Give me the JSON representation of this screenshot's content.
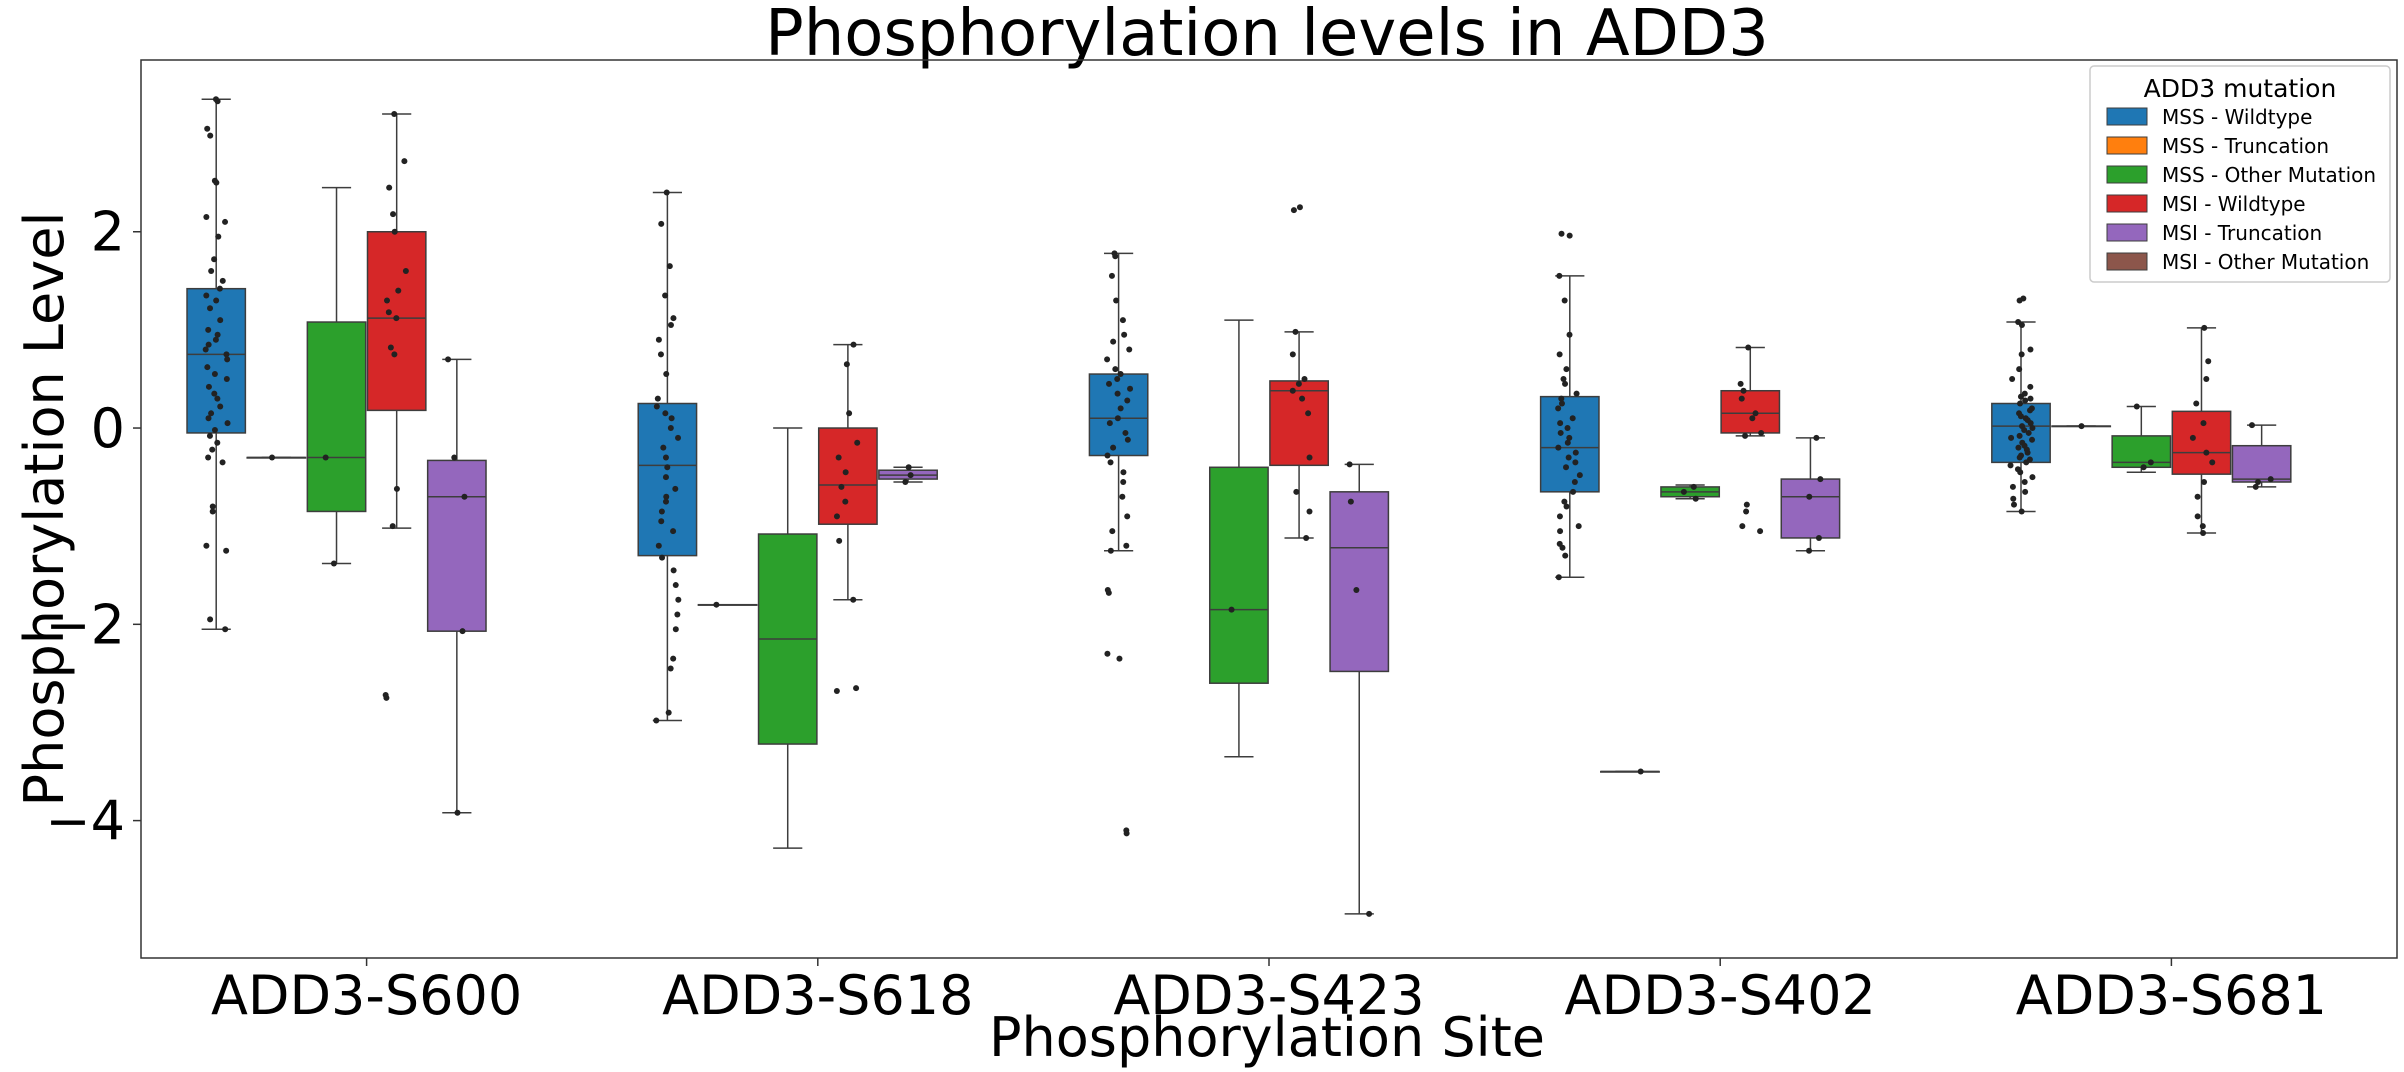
{
  "chart_data": {
    "type": "box",
    "title": "Phosphorylation levels in ADD3",
    "xlabel": "Phosphorylation Site",
    "ylabel": "Phosphorylation Level",
    "ylim": [
      -5.4,
      3.75
    ],
    "yticks": [
      2,
      0,
      -2,
      -4
    ],
    "ytick_labels": [
      "2",
      "0",
      "−2",
      "−4"
    ],
    "categories": [
      "ADD3-S600",
      "ADD3-S618",
      "ADD3-S423",
      "ADD3-S402",
      "ADD3-S681"
    ],
    "legend": {
      "title": "ADD3 mutation",
      "position": "top-right"
    },
    "series": [
      {
        "name": "MSS - Wildtype",
        "color": "#1f77b4",
        "boxes": [
          {
            "whislo": -2.05,
            "q1": -0.05,
            "med": 0.75,
            "q3": 1.42,
            "whishi": 3.35,
            "points": [
              3.35,
              3.33,
              3.05,
              2.98,
              2.52,
              2.5,
              2.15,
              2.1,
              1.95,
              1.72,
              1.6,
              1.5,
              1.42,
              1.35,
              1.3,
              1.22,
              1.1,
              1.0,
              0.95,
              0.9,
              0.85,
              0.8,
              0.75,
              0.7,
              0.62,
              0.55,
              0.5,
              0.42,
              0.35,
              0.3,
              0.22,
              0.15,
              0.1,
              0.05,
              -0.02,
              -0.08,
              -0.15,
              -0.22,
              -0.3,
              -0.35,
              -0.8,
              -0.85,
              -1.2,
              -1.25,
              -1.95,
              -2.05
            ]
          },
          {
            "whislo": -2.98,
            "q1": -1.3,
            "med": -0.38,
            "q3": 0.25,
            "whishi": 2.4,
            "points": [
              2.4,
              2.08,
              1.65,
              1.35,
              1.12,
              1.05,
              0.9,
              0.75,
              0.55,
              0.3,
              0.22,
              0.15,
              0.1,
              0.0,
              -0.1,
              -0.2,
              -0.3,
              -0.4,
              -0.5,
              -0.62,
              -0.7,
              -0.75,
              -0.85,
              -0.95,
              -1.05,
              -1.2,
              -1.32,
              -1.45,
              -1.6,
              -1.75,
              -1.9,
              -2.05,
              -2.35,
              -2.45,
              -2.9,
              -2.98
            ]
          },
          {
            "whislo": -1.25,
            "q1": -0.28,
            "med": 0.1,
            "q3": 0.55,
            "whishi": 1.78,
            "points": [
              1.78,
              1.75,
              1.55,
              1.3,
              1.1,
              0.95,
              0.88,
              0.8,
              0.7,
              0.6,
              0.55,
              0.5,
              0.45,
              0.4,
              0.35,
              0.28,
              0.2,
              0.1,
              0.05,
              -0.05,
              -0.12,
              -0.2,
              -0.28,
              -0.35,
              -0.45,
              -0.55,
              -0.7,
              -0.9,
              -1.05,
              -1.2,
              -1.25,
              -1.65,
              -1.68,
              -2.3,
              -2.35,
              -4.1,
              -4.13
            ]
          },
          {
            "whislo": -1.52,
            "q1": -0.65,
            "med": -0.2,
            "q3": 0.32,
            "whishi": 1.55,
            "points": [
              1.98,
              1.96,
              1.55,
              1.3,
              0.95,
              0.75,
              0.6,
              0.5,
              0.45,
              0.35,
              0.3,
              0.25,
              0.2,
              0.1,
              0.05,
              0.0,
              -0.05,
              -0.1,
              -0.15,
              -0.2,
              -0.25,
              -0.3,
              -0.35,
              -0.4,
              -0.48,
              -0.55,
              -0.65,
              -0.75,
              -0.8,
              -0.9,
              -1.0,
              -1.05,
              -1.18,
              -1.22,
              -1.3,
              -1.52
            ]
          },
          {
            "whislo": -0.85,
            "q1": -0.35,
            "med": 0.02,
            "q3": 0.25,
            "whishi": 1.08,
            "points": [
              1.32,
              1.3,
              1.08,
              1.05,
              0.8,
              0.75,
              0.6,
              0.5,
              0.42,
              0.35,
              0.32,
              0.3,
              0.28,
              0.25,
              0.2,
              0.18,
              0.15,
              0.12,
              0.1,
              0.08,
              0.05,
              0.02,
              0.0,
              -0.02,
              -0.05,
              -0.08,
              -0.1,
              -0.12,
              -0.15,
              -0.18,
              -0.2,
              -0.22,
              -0.25,
              -0.28,
              -0.3,
              -0.32,
              -0.35,
              -0.38,
              -0.42,
              -0.45,
              -0.5,
              -0.55,
              -0.6,
              -0.65,
              -0.72,
              -0.78,
              -0.85
            ]
          }
        ]
      },
      {
        "name": "MSS - Truncation",
        "color": "#ff7f0e",
        "boxes": [
          {
            "whislo": -0.3,
            "q1": -0.3,
            "med": -0.3,
            "q3": -0.3,
            "whishi": -0.3,
            "points": [
              -0.3
            ]
          },
          {
            "whislo": -1.8,
            "q1": -1.8,
            "med": -1.8,
            "q3": -1.8,
            "whishi": -1.8,
            "points": [
              -1.8
            ]
          },
          null,
          {
            "whislo": -3.5,
            "q1": -3.5,
            "med": -3.5,
            "q3": -3.5,
            "whishi": -3.5,
            "points": [
              -3.5
            ]
          },
          {
            "whislo": 0.02,
            "q1": 0.02,
            "med": 0.02,
            "q3": 0.02,
            "whishi": 0.02,
            "points": [
              0.02
            ]
          }
        ]
      },
      {
        "name": "MSS - Other Mutation",
        "color": "#2ca02c",
        "boxes": [
          {
            "whislo": -1.38,
            "q1": -0.85,
            "med": -0.3,
            "q3": 1.08,
            "whishi": 2.45,
            "points": [
              -0.3,
              -1.38
            ]
          },
          {
            "whislo": -4.28,
            "q1": -3.22,
            "med": -2.15,
            "q3": -1.08,
            "whishi": 0.0,
            "points": []
          },
          {
            "whislo": -3.35,
            "q1": -2.6,
            "med": -1.85,
            "q3": -0.4,
            "whishi": 1.1,
            "points": [
              -1.85
            ]
          },
          {
            "whislo": -0.72,
            "q1": -0.7,
            "med": -0.65,
            "q3": -0.6,
            "whishi": -0.58,
            "points": [
              -0.6,
              -0.65,
              -0.72
            ]
          },
          {
            "whislo": -0.45,
            "q1": -0.4,
            "med": -0.35,
            "q3": -0.08,
            "whishi": 0.22,
            "points": [
              0.22,
              -0.35,
              -0.4
            ]
          }
        ]
      },
      {
        "name": "MSI - Wildtype",
        "color": "#d62728",
        "boxes": [
          {
            "whislo": -1.02,
            "q1": 0.18,
            "med": 1.12,
            "q3": 2.0,
            "whishi": 3.2,
            "points": [
              3.2,
              2.72,
              2.45,
              2.18,
              2.0,
              1.6,
              1.4,
              1.3,
              1.18,
              1.12,
              0.82,
              0.75,
              -0.62,
              -1.0,
              -2.72,
              -2.75
            ]
          },
          {
            "whislo": -1.75,
            "q1": -0.98,
            "med": -0.58,
            "q3": 0.0,
            "whishi": 0.85,
            "points": [
              0.85,
              0.65,
              0.15,
              -0.15,
              -0.3,
              -0.45,
              -0.6,
              -0.75,
              -0.9,
              -1.15,
              -1.75,
              -2.65,
              -2.68
            ]
          },
          {
            "whislo": -1.12,
            "q1": -0.38,
            "med": 0.38,
            "q3": 0.48,
            "whishi": 0.98,
            "points": [
              2.25,
              2.22,
              0.98,
              0.75,
              0.5,
              0.45,
              0.38,
              0.3,
              0.15,
              -0.3,
              -0.65,
              -0.85,
              -1.12
            ]
          },
          {
            "whislo": -0.08,
            "q1": -0.05,
            "med": 0.15,
            "q3": 0.38,
            "whishi": 0.82,
            "points": [
              0.82,
              0.45,
              0.38,
              0.3,
              0.15,
              0.1,
              -0.05,
              -0.08,
              -0.78,
              -0.85,
              -1.0,
              -1.05
            ]
          },
          {
            "whislo": -1.07,
            "q1": -0.47,
            "med": -0.25,
            "q3": 0.17,
            "whishi": 1.02,
            "points": [
              1.02,
              0.68,
              0.5,
              0.25,
              0.05,
              -0.1,
              -0.25,
              -0.35,
              -0.55,
              -0.7,
              -0.9,
              -1.0,
              -1.07
            ]
          }
        ]
      },
      {
        "name": "MSI - Truncation",
        "color": "#9467bd",
        "boxes": [
          {
            "whislo": -3.92,
            "q1": -2.07,
            "med": -0.7,
            "q3": -0.33,
            "whishi": 0.7,
            "points": [
              0.7,
              -0.3,
              -0.7,
              -2.07,
              -3.92
            ]
          },
          {
            "whislo": -0.55,
            "q1": -0.52,
            "med": -0.48,
            "q3": -0.43,
            "whishi": -0.4,
            "points": [
              -0.4,
              -0.48,
              -0.55
            ]
          },
          {
            "whislo": -4.95,
            "q1": -2.48,
            "med": -1.22,
            "q3": -0.65,
            "whishi": -0.37,
            "points": [
              -0.37,
              -0.75,
              -1.65,
              -4.95
            ]
          },
          {
            "whislo": -1.25,
            "q1": -1.12,
            "med": -0.7,
            "q3": -0.52,
            "whishi": -0.1,
            "points": [
              -0.1,
              -0.52,
              -0.7,
              -1.12,
              -1.25
            ]
          },
          {
            "whislo": -0.6,
            "q1": -0.55,
            "med": -0.52,
            "q3": -0.18,
            "whishi": 0.03,
            "points": [
              0.03,
              -0.52,
              -0.55,
              -0.6
            ]
          }
        ]
      },
      {
        "name": "MSI - Other Mutation",
        "color": "#8c564b",
        "boxes": [
          null,
          null,
          null,
          null,
          null
        ]
      }
    ]
  }
}
